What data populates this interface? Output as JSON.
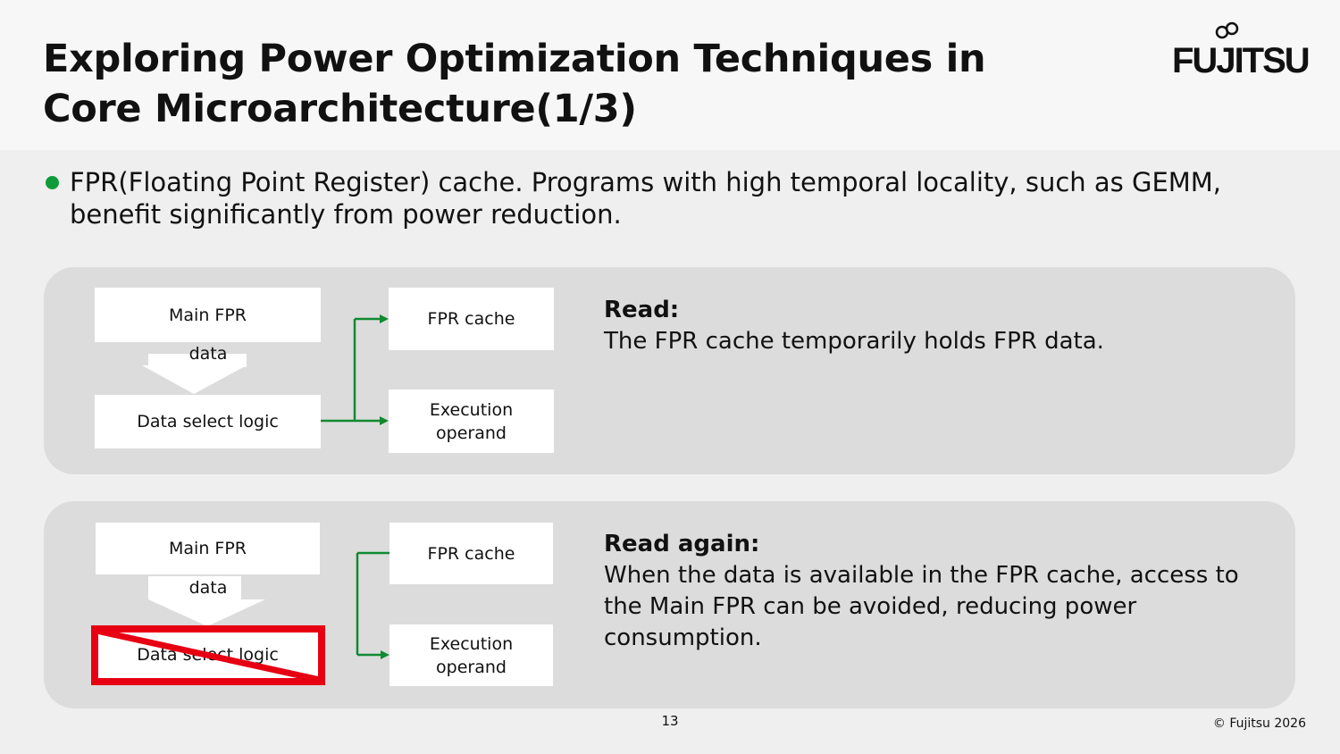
{
  "slide": {
    "title": "Exploring Power Optimization Techniques in Core Microarchitecture(1/3)",
    "logo": "FUJITSU",
    "page_number": "13",
    "copyright": "© Fujitsu 2026"
  },
  "bullet": {
    "text": "FPR(Floating Point Register) cache. Programs with high temporal locality, such as GEMM, benefit significantly from power reduction."
  },
  "panels": [
    {
      "main_fpr": "Main FPR",
      "data": "data",
      "data_select": "Data select logic",
      "fpr_cache": "FPR cache",
      "exec_operand": "Execution operand",
      "desc_title": "Read:",
      "desc_body": "The FPR cache temporarily holds FPR data."
    },
    {
      "main_fpr": "Main FPR",
      "data": "data",
      "data_select": "Data select logic",
      "fpr_cache": "FPR cache",
      "exec_operand": "Execution operand",
      "desc_title": "Read again:",
      "desc_body": "When the data is available in the FPR cache, access to the Main FPR can be avoided, reducing power consumption."
    }
  ],
  "colors": {
    "bullet": "#109b3a",
    "arrow": "#108a30",
    "cross": "#e60012",
    "panel": "#dcdcdc"
  }
}
